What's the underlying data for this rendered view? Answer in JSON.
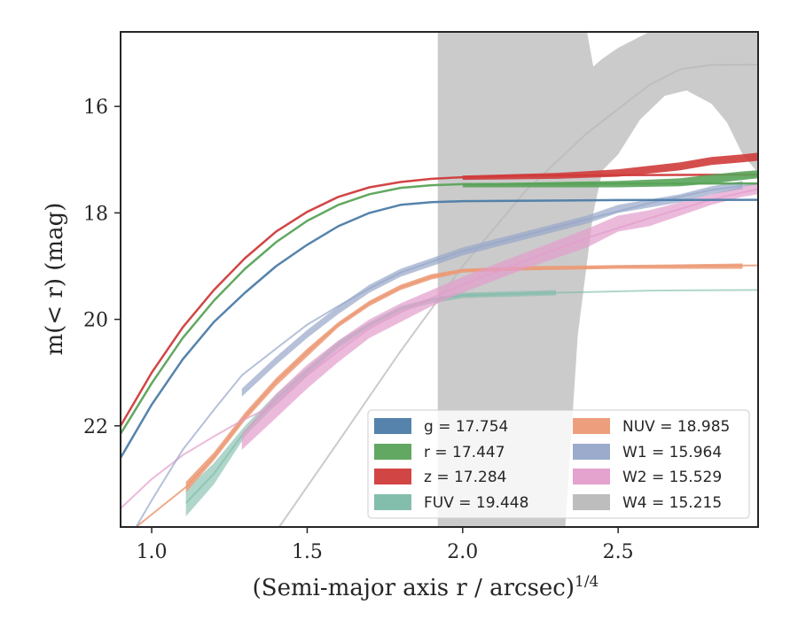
{
  "chart_data": {
    "type": "line",
    "xlabel": "(Semi-major axis r / arcsec)",
    "xlabel_exponent": "1/4",
    "ylabel": "m(< r) (mag)",
    "xlim": [
      0.9,
      2.95
    ],
    "ylim": [
      23.9,
      14.6
    ],
    "y_inverted": true,
    "x_ticks": [
      1.0,
      1.5,
      2.0,
      2.5
    ],
    "x_tick_labels": [
      "1.0",
      "1.5",
      "2.0",
      "2.5"
    ],
    "y_ticks": [
      16,
      18,
      20,
      22
    ],
    "y_tick_labels": [
      "16",
      "18",
      "20",
      "22"
    ],
    "grid": false,
    "legend_position": "lower-right",
    "legend": [
      {
        "label": "g = 17.754",
        "color": "#4c7ca8"
      },
      {
        "label": "r = 17.447",
        "color": "#5aa35a"
      },
      {
        "label": "z = 17.284",
        "color": "#d03b3b"
      },
      {
        "label": "FUV = 19.448",
        "color": "#7cbba9"
      },
      {
        "label": "NUV = 18.985",
        "color": "#ec9a76"
      },
      {
        "label": "W1 = 15.964",
        "color": "#97a7c9"
      },
      {
        "label": "W2 = 15.529",
        "color": "#e39dcc"
      },
      {
        "label": "W4 = 15.215",
        "color": "#b9b9b9"
      }
    ],
    "series": [
      {
        "band": "W4",
        "color": "#b9b9b9",
        "band_upper": [
          [
            1.92,
            14.6
          ],
          [
            2.4,
            14.6
          ],
          [
            2.42,
            15.25
          ],
          [
            2.45,
            15.1
          ],
          [
            2.5,
            14.9
          ],
          [
            2.55,
            14.75
          ],
          [
            2.6,
            14.6
          ],
          [
            2.95,
            14.6
          ]
        ],
        "band_lower": [
          [
            2.95,
            17.25
          ],
          [
            2.9,
            16.9
          ],
          [
            2.85,
            16.3
          ],
          [
            2.8,
            15.95
          ],
          [
            2.72,
            15.7
          ],
          [
            2.65,
            15.8
          ],
          [
            2.57,
            16.25
          ],
          [
            2.5,
            16.9
          ],
          [
            2.45,
            17.2
          ],
          [
            2.42,
            18.0
          ],
          [
            2.37,
            20.3
          ],
          [
            2.33,
            23.9
          ],
          [
            1.92,
            23.9
          ]
        ],
        "line": [
          [
            1.41,
            23.9
          ],
          [
            1.6,
            22.3
          ],
          [
            1.8,
            20.6
          ],
          [
            2.0,
            19.0
          ],
          [
            2.2,
            17.6
          ],
          [
            2.4,
            16.5
          ],
          [
            2.6,
            15.6
          ],
          [
            2.7,
            15.3
          ],
          [
            2.8,
            15.22
          ],
          [
            2.95,
            15.215
          ]
        ],
        "line_width": 2,
        "opacity": 0.75
      },
      {
        "band": "FUV",
        "color": "#7cbba9",
        "band_upper": [
          [
            1.11,
            23.2
          ],
          [
            1.2,
            22.7
          ],
          [
            1.3,
            22.0
          ],
          [
            1.4,
            21.4
          ],
          [
            1.5,
            20.9
          ],
          [
            1.6,
            20.4
          ],
          [
            1.7,
            20.05
          ],
          [
            1.8,
            19.75
          ],
          [
            1.9,
            19.6
          ],
          [
            2.0,
            19.5
          ],
          [
            2.3,
            19.45
          ]
        ],
        "band_lower": [
          [
            2.3,
            19.55
          ],
          [
            2.0,
            19.6
          ],
          [
            1.9,
            19.7
          ],
          [
            1.8,
            19.85
          ],
          [
            1.7,
            20.15
          ],
          [
            1.6,
            20.55
          ],
          [
            1.5,
            21.05
          ],
          [
            1.4,
            21.6
          ],
          [
            1.3,
            22.2
          ],
          [
            1.2,
            23.1
          ],
          [
            1.11,
            23.7
          ]
        ],
        "line": [
          [
            1.11,
            23.45
          ],
          [
            1.2,
            22.9
          ],
          [
            1.3,
            22.1
          ],
          [
            1.4,
            21.5
          ],
          [
            1.5,
            20.97
          ],
          [
            1.6,
            20.47
          ],
          [
            1.7,
            20.1
          ],
          [
            1.8,
            19.8
          ],
          [
            1.9,
            19.63
          ],
          [
            2.0,
            19.55
          ],
          [
            2.3,
            19.5
          ],
          [
            2.6,
            19.46
          ],
          [
            2.95,
            19.448
          ]
        ],
        "line_width": 2,
        "opacity": 0.6
      },
      {
        "band": "NUV",
        "color": "#ec9a76",
        "band_upper": [
          [
            1.11,
            23.05
          ],
          [
            1.2,
            22.5
          ],
          [
            1.3,
            21.75
          ],
          [
            1.4,
            21.1
          ],
          [
            1.5,
            20.55
          ],
          [
            1.6,
            20.05
          ],
          [
            1.7,
            19.65
          ],
          [
            1.8,
            19.35
          ],
          [
            1.9,
            19.15
          ],
          [
            2.0,
            19.05
          ],
          [
            2.2,
            19.0
          ],
          [
            2.5,
            18.98
          ],
          [
            2.9,
            18.95
          ]
        ],
        "band_lower": [
          [
            2.9,
            19.05
          ],
          [
            2.5,
            19.05
          ],
          [
            2.2,
            19.08
          ],
          [
            2.0,
            19.12
          ],
          [
            1.9,
            19.25
          ],
          [
            1.8,
            19.45
          ],
          [
            1.7,
            19.75
          ],
          [
            1.6,
            20.15
          ],
          [
            1.5,
            20.7
          ],
          [
            1.4,
            21.25
          ],
          [
            1.3,
            21.9
          ],
          [
            1.2,
            22.65
          ],
          [
            1.11,
            23.25
          ]
        ],
        "line": [
          [
            0.95,
            23.9
          ],
          [
            1.11,
            23.15
          ],
          [
            1.2,
            22.58
          ],
          [
            1.3,
            21.83
          ],
          [
            1.4,
            21.17
          ],
          [
            1.5,
            20.62
          ],
          [
            1.6,
            20.1
          ],
          [
            1.7,
            19.7
          ],
          [
            1.8,
            19.4
          ],
          [
            1.9,
            19.2
          ],
          [
            2.0,
            19.08
          ],
          [
            2.5,
            19.01
          ],
          [
            2.95,
            18.985
          ]
        ],
        "line_width": 2,
        "opacity": 0.85
      },
      {
        "band": "W2",
        "color": "#e39dcc",
        "band_upper": [
          [
            1.29,
            22.15
          ],
          [
            1.4,
            21.4
          ],
          [
            1.5,
            20.85
          ],
          [
            1.6,
            20.4
          ],
          [
            1.7,
            20.0
          ],
          [
            1.8,
            19.7
          ],
          [
            1.9,
            19.45
          ],
          [
            2.0,
            19.2
          ],
          [
            2.2,
            18.75
          ],
          [
            2.4,
            18.3
          ],
          [
            2.5,
            18.05
          ],
          [
            2.6,
            17.95
          ],
          [
            2.7,
            17.8
          ],
          [
            2.8,
            17.65
          ],
          [
            2.9,
            17.5
          ],
          [
            2.95,
            17.45
          ]
        ],
        "band_lower": [
          [
            2.95,
            17.65
          ],
          [
            2.9,
            17.7
          ],
          [
            2.8,
            17.85
          ],
          [
            2.7,
            18.05
          ],
          [
            2.6,
            18.25
          ],
          [
            2.5,
            18.35
          ],
          [
            2.4,
            18.65
          ],
          [
            2.2,
            19.05
          ],
          [
            2.0,
            19.5
          ],
          [
            1.9,
            19.75
          ],
          [
            1.8,
            20.05
          ],
          [
            1.7,
            20.35
          ],
          [
            1.6,
            20.8
          ],
          [
            1.5,
            21.3
          ],
          [
            1.4,
            21.85
          ],
          [
            1.29,
            22.45
          ]
        ],
        "line": [
          [
            0.9,
            23.55
          ],
          [
            1.0,
            23.0
          ],
          [
            1.1,
            22.55
          ],
          [
            1.2,
            22.2
          ],
          [
            1.29,
            21.9
          ],
          [
            1.4,
            21.6
          ],
          [
            1.5,
            21.05
          ],
          [
            1.6,
            20.6
          ],
          [
            1.7,
            20.17
          ],
          [
            1.8,
            19.87
          ],
          [
            1.9,
            19.6
          ],
          [
            2.0,
            19.35
          ],
          [
            2.2,
            18.9
          ],
          [
            2.4,
            18.47
          ],
          [
            2.6,
            18.1
          ],
          [
            2.8,
            17.75
          ],
          [
            2.95,
            17.55
          ]
        ],
        "line_width": 2,
        "opacity": 0.7
      },
      {
        "band": "W1",
        "color": "#97a7c9",
        "band_upper": [
          [
            1.29,
            21.3
          ],
          [
            1.4,
            20.7
          ],
          [
            1.5,
            20.2
          ],
          [
            1.6,
            19.75
          ],
          [
            1.7,
            19.35
          ],
          [
            1.8,
            19.05
          ],
          [
            1.9,
            18.85
          ],
          [
            2.0,
            18.65
          ],
          [
            2.2,
            18.35
          ],
          [
            2.4,
            18.05
          ],
          [
            2.5,
            17.85
          ],
          [
            2.6,
            17.75
          ],
          [
            2.7,
            17.65
          ],
          [
            2.8,
            17.5
          ],
          [
            2.9,
            17.4
          ]
        ],
        "band_lower": [
          [
            2.9,
            17.55
          ],
          [
            2.8,
            17.65
          ],
          [
            2.7,
            17.8
          ],
          [
            2.6,
            17.9
          ],
          [
            2.5,
            18.0
          ],
          [
            2.4,
            18.2
          ],
          [
            2.2,
            18.5
          ],
          [
            2.0,
            18.8
          ],
          [
            1.9,
            19.0
          ],
          [
            1.8,
            19.2
          ],
          [
            1.7,
            19.5
          ],
          [
            1.6,
            19.9
          ],
          [
            1.5,
            20.35
          ],
          [
            1.4,
            20.85
          ],
          [
            1.29,
            21.45
          ]
        ],
        "line": [
          [
            0.95,
            23.9
          ],
          [
            1.0,
            23.4
          ],
          [
            1.1,
            22.45
          ],
          [
            1.2,
            21.7
          ],
          [
            1.29,
            21.05
          ],
          [
            1.4,
            20.55
          ],
          [
            1.5,
            20.1
          ],
          [
            1.6,
            19.75
          ],
          [
            1.7,
            19.42
          ],
          [
            1.8,
            19.12
          ],
          [
            1.9,
            18.92
          ],
          [
            2.0,
            18.72
          ],
          [
            2.2,
            18.42
          ],
          [
            2.4,
            18.12
          ],
          [
            2.6,
            17.82
          ],
          [
            2.8,
            17.57
          ],
          [
            2.95,
            17.45
          ]
        ],
        "line_width": 2,
        "opacity": 0.7
      },
      {
        "band": "g",
        "color": "#4c7ca8",
        "line": [
          [
            0.9,
            22.6
          ],
          [
            1.0,
            21.6
          ],
          [
            1.1,
            20.75
          ],
          [
            1.2,
            20.05
          ],
          [
            1.3,
            19.5
          ],
          [
            1.4,
            19.0
          ],
          [
            1.5,
            18.6
          ],
          [
            1.6,
            18.25
          ],
          [
            1.7,
            18.0
          ],
          [
            1.8,
            17.85
          ],
          [
            1.9,
            17.8
          ],
          [
            2.0,
            17.78
          ],
          [
            2.5,
            17.76
          ],
          [
            2.95,
            17.754
          ]
        ],
        "line_width": 2.5,
        "opacity": 0.95
      },
      {
        "band": "r",
        "color": "#5aa35a",
        "line": [
          [
            0.9,
            22.15
          ],
          [
            1.0,
            21.2
          ],
          [
            1.1,
            20.35
          ],
          [
            1.2,
            19.65
          ],
          [
            1.3,
            19.05
          ],
          [
            1.4,
            18.55
          ],
          [
            1.5,
            18.15
          ],
          [
            1.6,
            17.85
          ],
          [
            1.7,
            17.65
          ],
          [
            1.8,
            17.53
          ],
          [
            1.9,
            17.48
          ],
          [
            2.0,
            17.46
          ],
          [
            2.5,
            17.45
          ],
          [
            2.95,
            17.447
          ]
        ],
        "line_width": 2.5,
        "opacity": 0.95
      },
      {
        "band": "z",
        "color": "#d03b3b",
        "line": [
          [
            0.9,
            22.0
          ],
          [
            1.0,
            21.0
          ],
          [
            1.1,
            20.15
          ],
          [
            1.2,
            19.45
          ],
          [
            1.3,
            18.85
          ],
          [
            1.4,
            18.35
          ],
          [
            1.5,
            17.98
          ],
          [
            1.6,
            17.7
          ],
          [
            1.7,
            17.52
          ],
          [
            1.8,
            17.42
          ],
          [
            1.9,
            17.36
          ],
          [
            2.0,
            17.33
          ],
          [
            2.2,
            17.3
          ],
          [
            2.5,
            17.29
          ],
          [
            2.95,
            17.284
          ]
        ],
        "line_width": 2.5,
        "opacity": 0.95
      },
      {
        "band": "r-extension",
        "color": "#5aa35a",
        "band_upper": [
          [
            2.0,
            17.45
          ],
          [
            2.5,
            17.4
          ],
          [
            2.7,
            17.35
          ],
          [
            2.8,
            17.28
          ],
          [
            2.9,
            17.22
          ],
          [
            2.95,
            17.2
          ]
        ],
        "band_lower": [
          [
            2.95,
            17.35
          ],
          [
            2.9,
            17.38
          ],
          [
            2.8,
            17.45
          ],
          [
            2.7,
            17.5
          ],
          [
            2.5,
            17.52
          ],
          [
            2.0,
            17.52
          ]
        ],
        "opacity": 0.9
      },
      {
        "band": "z-extension",
        "color": "#d03b3b",
        "band_upper": [
          [
            2.0,
            17.3
          ],
          [
            2.3,
            17.25
          ],
          [
            2.5,
            17.18
          ],
          [
            2.7,
            17.05
          ],
          [
            2.8,
            16.95
          ],
          [
            2.9,
            16.9
          ],
          [
            2.95,
            16.87
          ]
        ],
        "band_lower": [
          [
            2.95,
            17.02
          ],
          [
            2.9,
            17.05
          ],
          [
            2.8,
            17.1
          ],
          [
            2.7,
            17.2
          ],
          [
            2.5,
            17.32
          ],
          [
            2.3,
            17.36
          ],
          [
            2.0,
            17.38
          ]
        ],
        "opacity": 0.9
      }
    ]
  }
}
